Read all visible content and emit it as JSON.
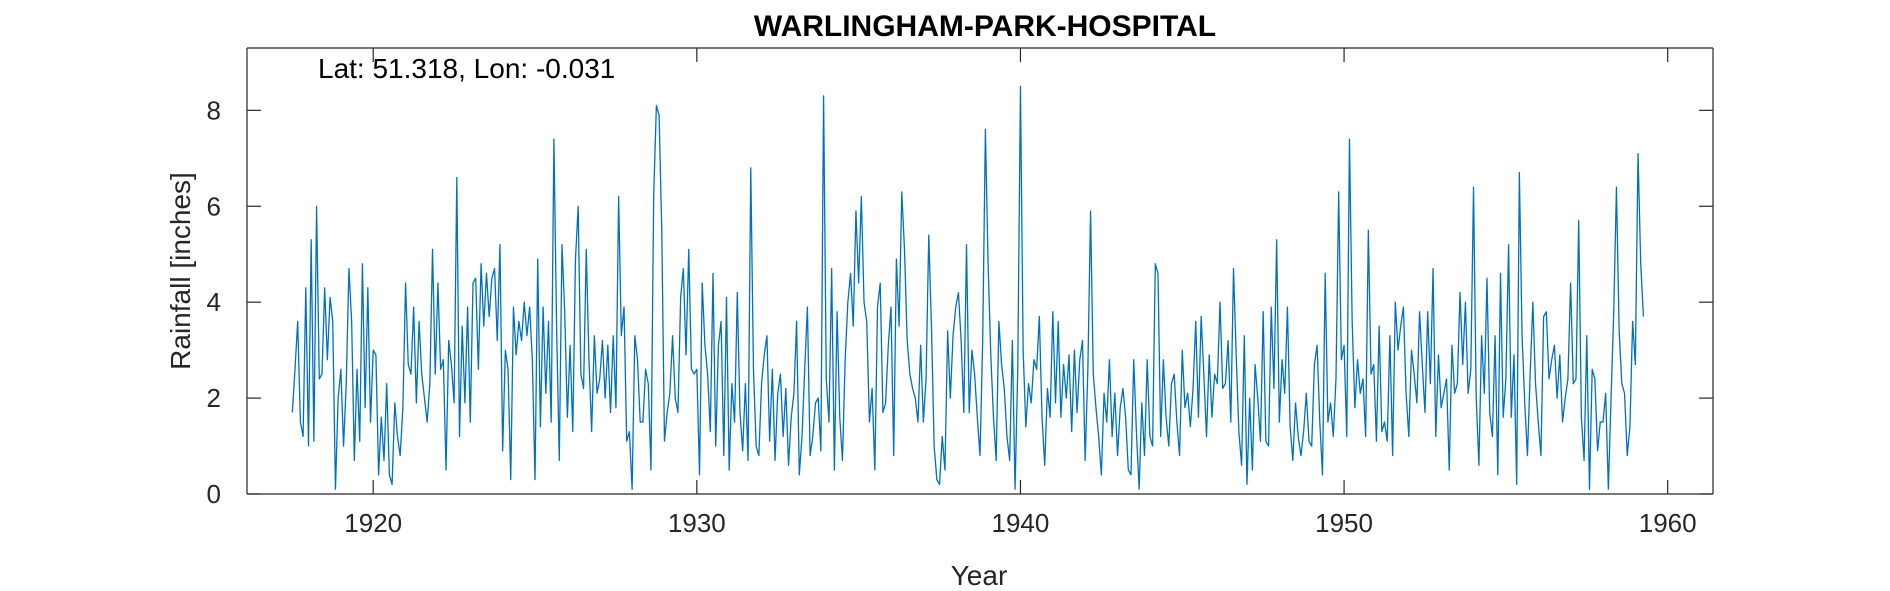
{
  "chart_data": {
    "type": "line",
    "title": "WARLINGHAM-PARK-HOSPITAL",
    "annotation": "Lat: 51.318, Lon: -0.031",
    "xlabel": "Year",
    "ylabel": "Rainfall [inches]",
    "xlim": [
      1916.1,
      1961.4
    ],
    "ylim": [
      0,
      9.3
    ],
    "x_ticks": [
      1920,
      1930,
      1940,
      1950,
      1960
    ],
    "y_ticks": [
      0,
      2,
      4,
      6,
      8
    ],
    "x_tick_labels": [
      "1920",
      "1930",
      "1940",
      "1950",
      "1960"
    ],
    "y_tick_labels": [
      "0",
      "2",
      "4",
      "6",
      "8"
    ],
    "grid": false,
    "line_color": "#0072BD",
    "series": [
      {
        "x_start": 1917.5,
        "x_step": 0.083333,
        "values": [
          1.7,
          2.6,
          3.6,
          1.5,
          1.2,
          4.3,
          1.0,
          5.3,
          1.1,
          6.0,
          2.4,
          2.5,
          4.3,
          2.8,
          4.1,
          3.6,
          0.1,
          2.0,
          2.6,
          1.0,
          2.3,
          4.7,
          3.6,
          0.7,
          2.6,
          1.1,
          4.8,
          1.8,
          4.3,
          1.5,
          3.0,
          2.9,
          0.4,
          1.6,
          0.7,
          2.3,
          0.4,
          0.2,
          1.9,
          1.2,
          0.8,
          1.8,
          4.4,
          2.7,
          2.5,
          3.9,
          1.9,
          3.6,
          2.5,
          2.0,
          1.5,
          2.3,
          5.1,
          2.5,
          4.4,
          2.6,
          2.8,
          0.5,
          3.2,
          2.7,
          1.9,
          6.6,
          1.2,
          3.5,
          1.9,
          3.9,
          1.5,
          4.4,
          4.5,
          2.6,
          4.8,
          3.5,
          4.6,
          3.7,
          4.5,
          4.7,
          3.2,
          5.2,
          0.9,
          3.0,
          2.6,
          0.3,
          3.9,
          2.9,
          3.6,
          3.2,
          4.0,
          3.3,
          3.9,
          2.8,
          0.3,
          4.9,
          1.4,
          3.9,
          2.1,
          3.6,
          1.5,
          7.4,
          3.5,
          0.7,
          5.2,
          3.8,
          1.6,
          3.1,
          1.3,
          4.9,
          6.0,
          2.5,
          2.2,
          5.1,
          2.8,
          1.3,
          3.3,
          2.1,
          2.4,
          3.2,
          2.0,
          3.1,
          1.7,
          3.3,
          1.8,
          6.2,
          3.3,
          3.9,
          1.1,
          1.3,
          0.1,
          3.3,
          2.8,
          1.5,
          1.5,
          2.6,
          2.3,
          0.5,
          6.2,
          8.1,
          7.9,
          5.5,
          1.1,
          1.7,
          2.1,
          3.3,
          2.0,
          1.7,
          4.1,
          4.7,
          2.9,
          5.1,
          2.6,
          2.5,
          2.6,
          0.4,
          4.4,
          3.1,
          2.5,
          1.3,
          4.6,
          1.0,
          3.1,
          3.6,
          0.8,
          4.1,
          0.5,
          2.3,
          1.5,
          4.2,
          1.7,
          0.9,
          2.3,
          0.7,
          6.8,
          2.6,
          1.0,
          0.8,
          2.3,
          2.9,
          3.3,
          1.1,
          2.6,
          0.7,
          2.1,
          2.5,
          1.2,
          2.2,
          0.6,
          1.6,
          2.1,
          3.6,
          0.4,
          1.2,
          2.6,
          3.9,
          0.8,
          1.2,
          1.9,
          2.0,
          0.9,
          8.3,
          2.4,
          1.5,
          4.7,
          0.5,
          3.8,
          1.6,
          0.7,
          2.8,
          4.0,
          4.6,
          3.5,
          5.9,
          4.4,
          6.2,
          4.0,
          3.6,
          1.5,
          2.2,
          0.5,
          3.9,
          4.4,
          1.7,
          1.9,
          3.1,
          3.9,
          0.8,
          4.9,
          3.5,
          6.3,
          5.1,
          3.2,
          2.5,
          2.2,
          2.0,
          1.5,
          3.1,
          1.5,
          2.4,
          5.4,
          3.5,
          1.0,
          0.3,
          0.2,
          1.2,
          0.5,
          3.4,
          2.0,
          3.3,
          3.9,
          4.2,
          3.2,
          1.7,
          5.2,
          1.7,
          3.0,
          2.5,
          1.6,
          0.8,
          3.2,
          7.6,
          4.8,
          2.9,
          1.6,
          0.7,
          3.6,
          2.7,
          2.2,
          1.2,
          0.7,
          3.2,
          0.1,
          2.6,
          8.5,
          3.0,
          1.4,
          2.3,
          1.9,
          2.8,
          2.6,
          3.7,
          1.6,
          0.6,
          2.2,
          1.6,
          3.8,
          1.9,
          3.6,
          1.6,
          2.7,
          2.0,
          2.9,
          1.3,
          3.0,
          1.7,
          2.8,
          3.2,
          0.7,
          2.6,
          5.9,
          2.5,
          1.8,
          1.2,
          0.4,
          2.1,
          1.5,
          2.8,
          1.2,
          2.1,
          0.8,
          1.8,
          2.2,
          1.6,
          0.5,
          0.4,
          2.8,
          1.3,
          0.1,
          1.9,
          0.8,
          2.8,
          1.2,
          1.0,
          4.8,
          4.6,
          1.2,
          2.8,
          1.6,
          1.0,
          2.3,
          2.5,
          1.5,
          0.8,
          3.0,
          1.8,
          2.1,
          1.4,
          2.2,
          3.6,
          1.6,
          3.7,
          2.5,
          1.2,
          2.9,
          1.6,
          2.5,
          2.3,
          4.0,
          2.2,
          2.3,
          3.2,
          1.5,
          4.7,
          2.9,
          1.3,
          0.6,
          3.3,
          0.2,
          2.0,
          0.5,
          2.7,
          2.0,
          1.1,
          3.8,
          1.1,
          1.0,
          3.9,
          2.2,
          5.3,
          1.5,
          2.8,
          2.1,
          3.9,
          1.4,
          0.7,
          1.9,
          1.2,
          0.8,
          1.3,
          2.1,
          1.1,
          1.0,
          2.7,
          3.1,
          1.5,
          0.4,
          4.6,
          1.5,
          1.9,
          1.2,
          2.4,
          6.3,
          2.8,
          3.1,
          1.2,
          7.4,
          3.6,
          1.8,
          2.8,
          2.1,
          2.4,
          1.2,
          5.5,
          2.5,
          2.7,
          1.1,
          3.5,
          1.3,
          1.5,
          1.1,
          3.3,
          0.8,
          4.0,
          3.0,
          3.5,
          3.9,
          2.1,
          1.2,
          3.0,
          2.5,
          1.9,
          3.8,
          2.7,
          1.7,
          3.8,
          2.3,
          4.7,
          1.2,
          2.9,
          1.8,
          2.1,
          2.4,
          0.5,
          3.1,
          2.1,
          2.3,
          4.2,
          2.7,
          4.0,
          2.1,
          2.6,
          6.4,
          2.0,
          0.6,
          3.3,
          2.1,
          4.5,
          1.7,
          1.2,
          3.3,
          0.4,
          4.6,
          1.6,
          2.4,
          5.2,
          1.6,
          2.9,
          0.2,
          6.7,
          3.3,
          1.9,
          0.8,
          2.5,
          4.0,
          2.3,
          1.5,
          0.8,
          3.7,
          3.8,
          2.4,
          2.8,
          3.1,
          2.0,
          2.9,
          1.5,
          2.0,
          2.4,
          4.4,
          2.3,
          2.4,
          5.7,
          1.6,
          0.7,
          3.3,
          0.1,
          2.6,
          2.4,
          0.9,
          1.5,
          1.5,
          2.1,
          0.1,
          2.0,
          3.8,
          6.4,
          3.4,
          2.3,
          2.1,
          0.8,
          1.4,
          3.6,
          2.7,
          7.1,
          4.8,
          3.7
        ]
      }
    ]
  }
}
